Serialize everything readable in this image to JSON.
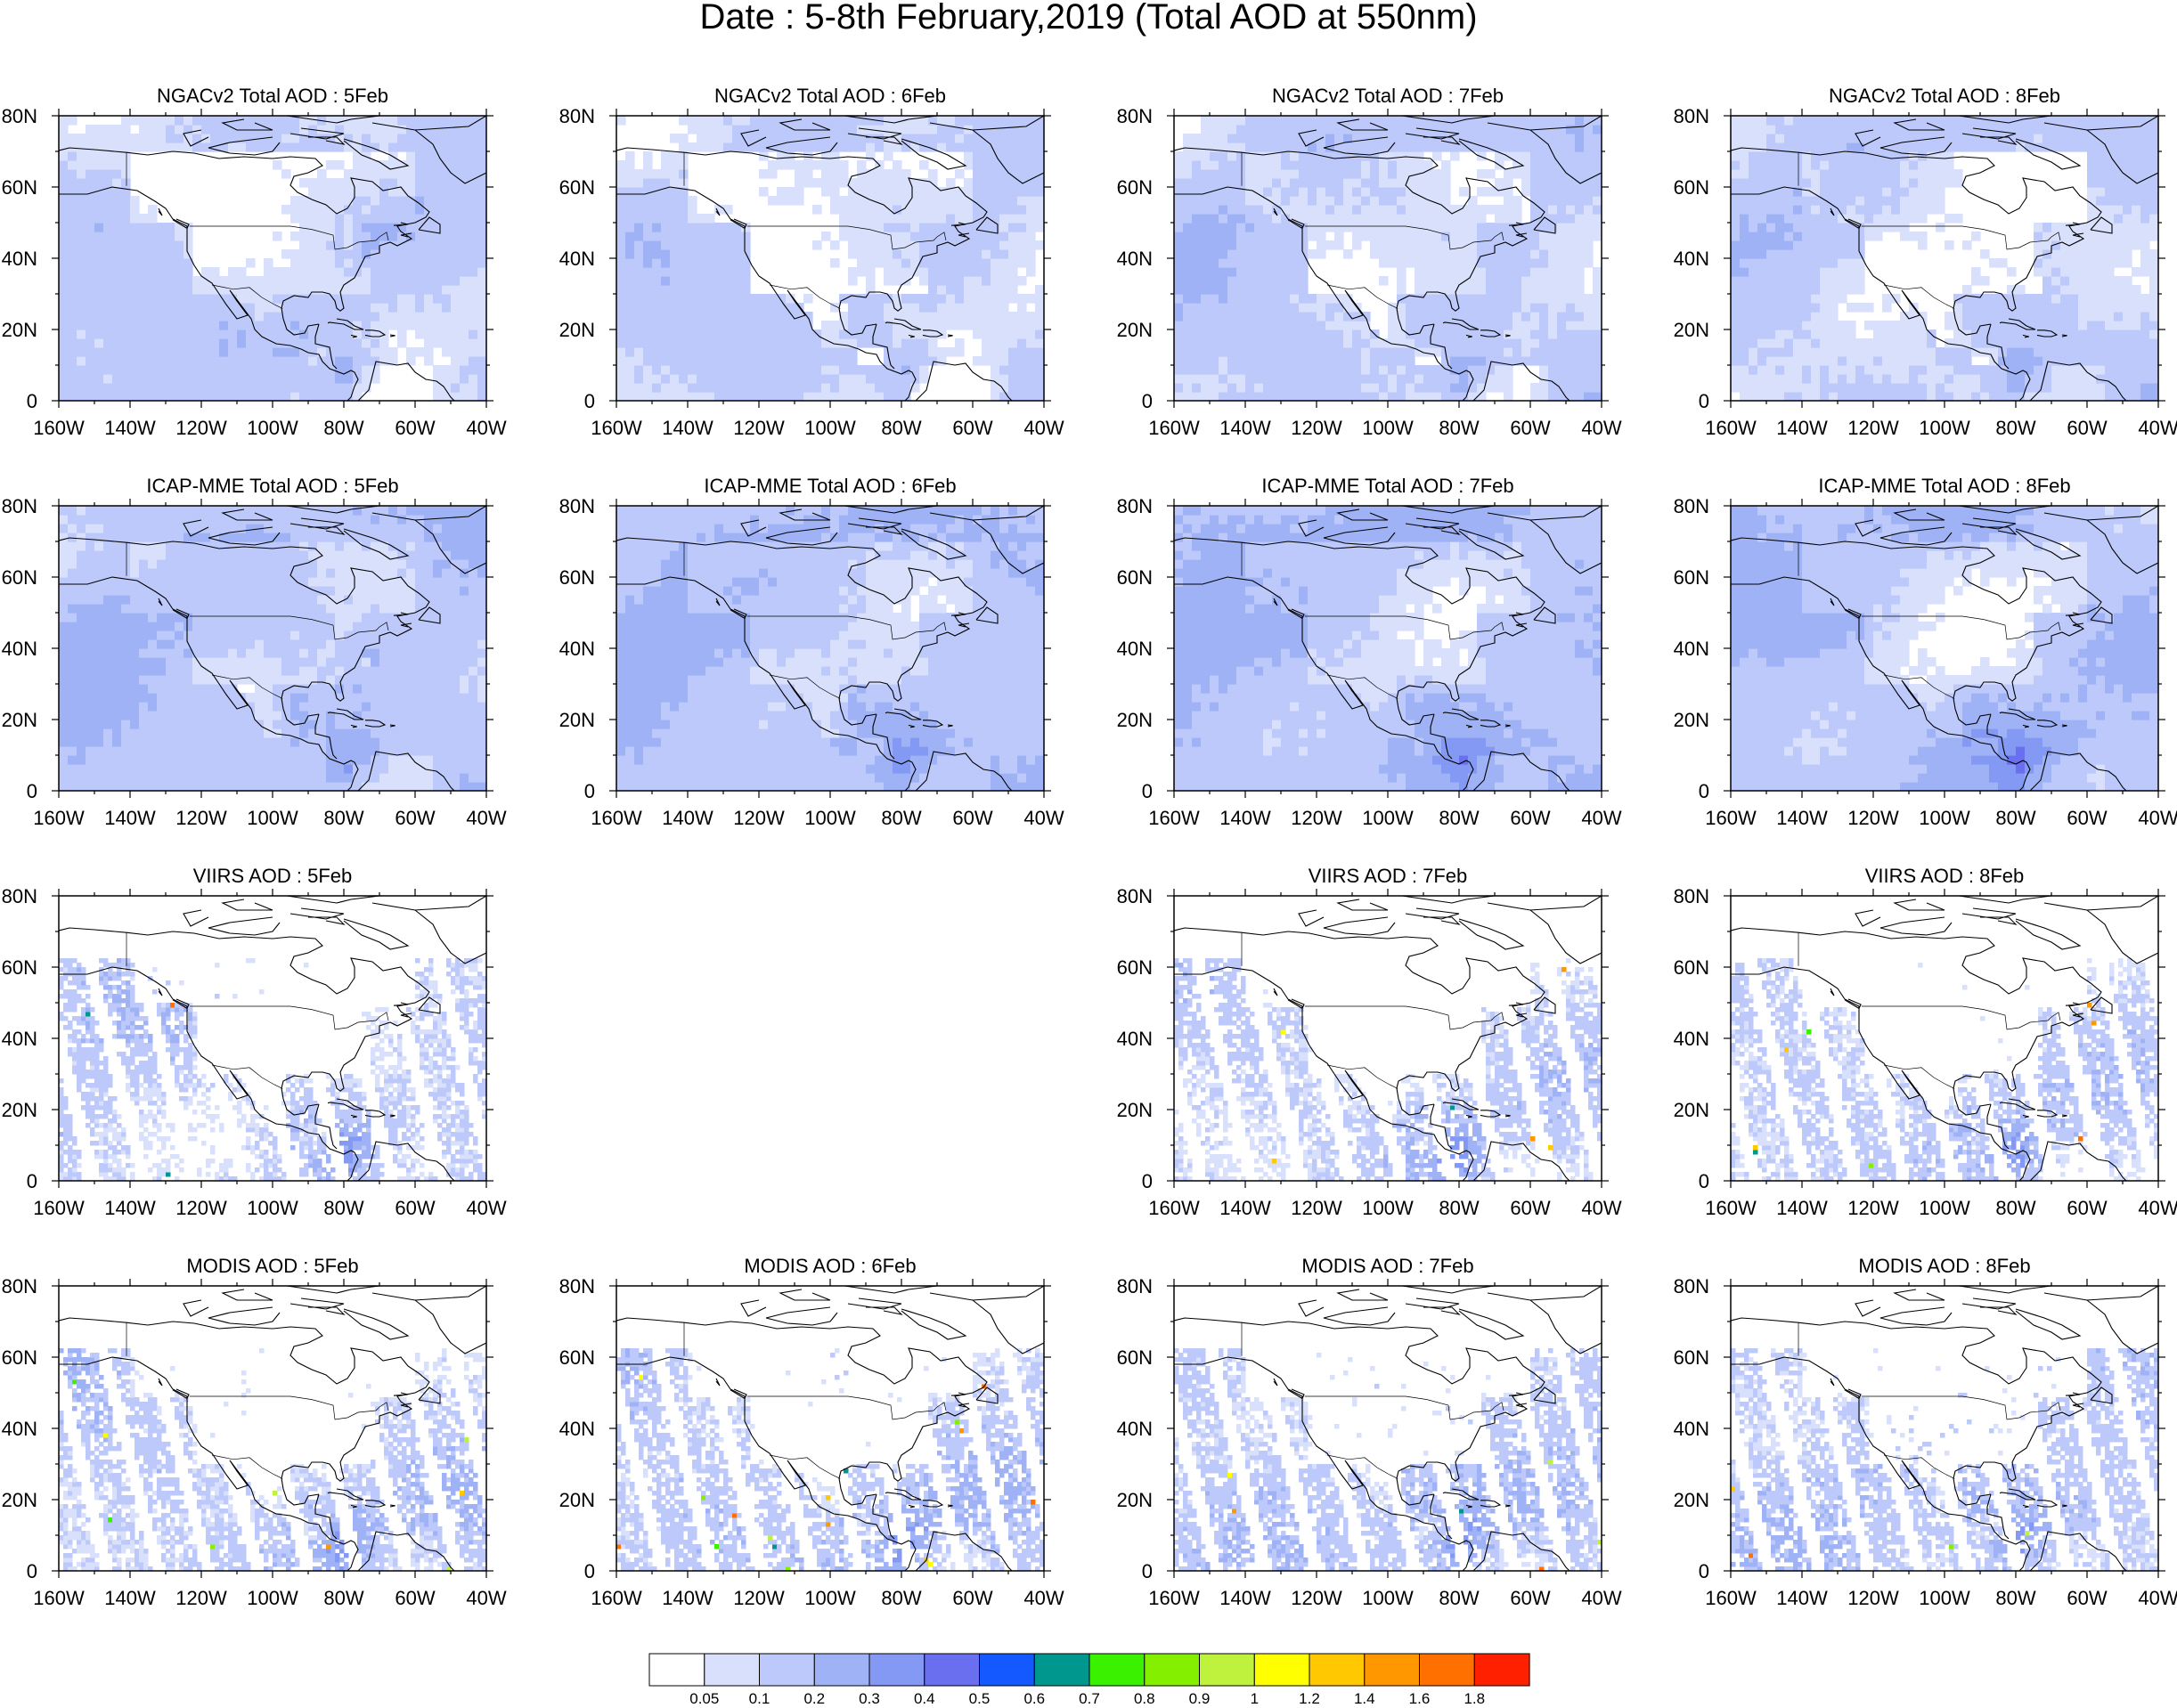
{
  "title": "Date : 5-8th February,2019 (Total AOD at 550nm)",
  "lon_ticks": [
    "160W",
    "140W",
    "120W",
    "100W",
    "80W",
    "60W",
    "40W"
  ],
  "lat_ticks": [
    "80N",
    "60N",
    "40N",
    "20N",
    "0"
  ],
  "extent": {
    "lon": [
      -160,
      -40
    ],
    "lat": [
      0,
      80
    ]
  },
  "rows": [
    {
      "product": "NGACv2 Total AOD",
      "kind": "model",
      "panels": [
        {
          "title": "NGACv2 Total AOD : 5Feb",
          "date": "5Feb",
          "level": 0.12,
          "seed": 11
        },
        {
          "title": "NGACv2 Total AOD : 6Feb",
          "date": "6Feb",
          "level": 0.11,
          "seed": 12
        },
        {
          "title": "NGACv2 Total AOD : 7Feb",
          "date": "7Feb",
          "level": 0.13,
          "seed": 13
        },
        {
          "title": "NGACv2 Total AOD : 8Feb",
          "date": "8Feb",
          "level": 0.12,
          "seed": 14
        }
      ]
    },
    {
      "product": "ICAP-MME Total AOD",
      "kind": "model",
      "panels": [
        {
          "title": "ICAP-MME Total AOD : 5Feb",
          "date": "5Feb",
          "level": 0.17,
          "seed": 21
        },
        {
          "title": "ICAP-MME Total AOD : 6Feb",
          "date": "6Feb",
          "level": 0.18,
          "seed": 22
        },
        {
          "title": "ICAP-MME Total AOD : 7Feb",
          "date": "7Feb",
          "level": 0.19,
          "seed": 23
        },
        {
          "title": "ICAP-MME Total AOD : 8Feb",
          "date": "8Feb",
          "level": 0.18,
          "seed": 24
        }
      ]
    },
    {
      "product": "VIIRS AOD",
      "kind": "satellite",
      "panels": [
        {
          "title": "VIIRS AOD : 5Feb",
          "date": "5Feb",
          "level": 0.12,
          "seed": 31
        },
        null,
        {
          "title": "VIIRS AOD : 7Feb",
          "date": "7Feb",
          "level": 0.11,
          "seed": 33
        },
        {
          "title": "VIIRS AOD : 8Feb",
          "date": "8Feb",
          "level": 0.11,
          "seed": 34
        }
      ]
    },
    {
      "product": "MODIS AOD",
      "kind": "satellite",
      "panels": [
        {
          "title": "MODIS AOD : 5Feb",
          "date": "5Feb",
          "level": 0.13,
          "seed": 41
        },
        {
          "title": "MODIS AOD : 6Feb",
          "date": "6Feb",
          "level": 0.14,
          "seed": 42
        },
        {
          "title": "MODIS AOD : 7Feb",
          "date": "7Feb",
          "level": 0.14,
          "seed": 43
        },
        {
          "title": "MODIS AOD : 8Feb",
          "date": "8Feb",
          "level": 0.14,
          "seed": 44
        }
      ]
    }
  ],
  "colorbar": {
    "labels": [
      "0.05",
      "0.1",
      "0.2",
      "0.3",
      "0.4",
      "0.5",
      "0.6",
      "0.7",
      "0.8",
      "0.9",
      "1",
      "1.2",
      "1.4",
      "1.6",
      "1.8"
    ],
    "thresholds": [
      0.05,
      0.1,
      0.2,
      0.3,
      0.4,
      0.5,
      0.6,
      0.7,
      0.8,
      0.9,
      1,
      1.2,
      1.4,
      1.6,
      1.8
    ],
    "colors": [
      "#ffffff",
      "#d8e0fc",
      "#bcc9fa",
      "#9fb2f6",
      "#8399f3",
      "#6a6ff0",
      "#1458ff",
      "#00978f",
      "#3af200",
      "#84f000",
      "#bff23c",
      "#ffff00",
      "#ffc800",
      "#ff9800",
      "#ff7000",
      "#ff2000"
    ]
  }
}
